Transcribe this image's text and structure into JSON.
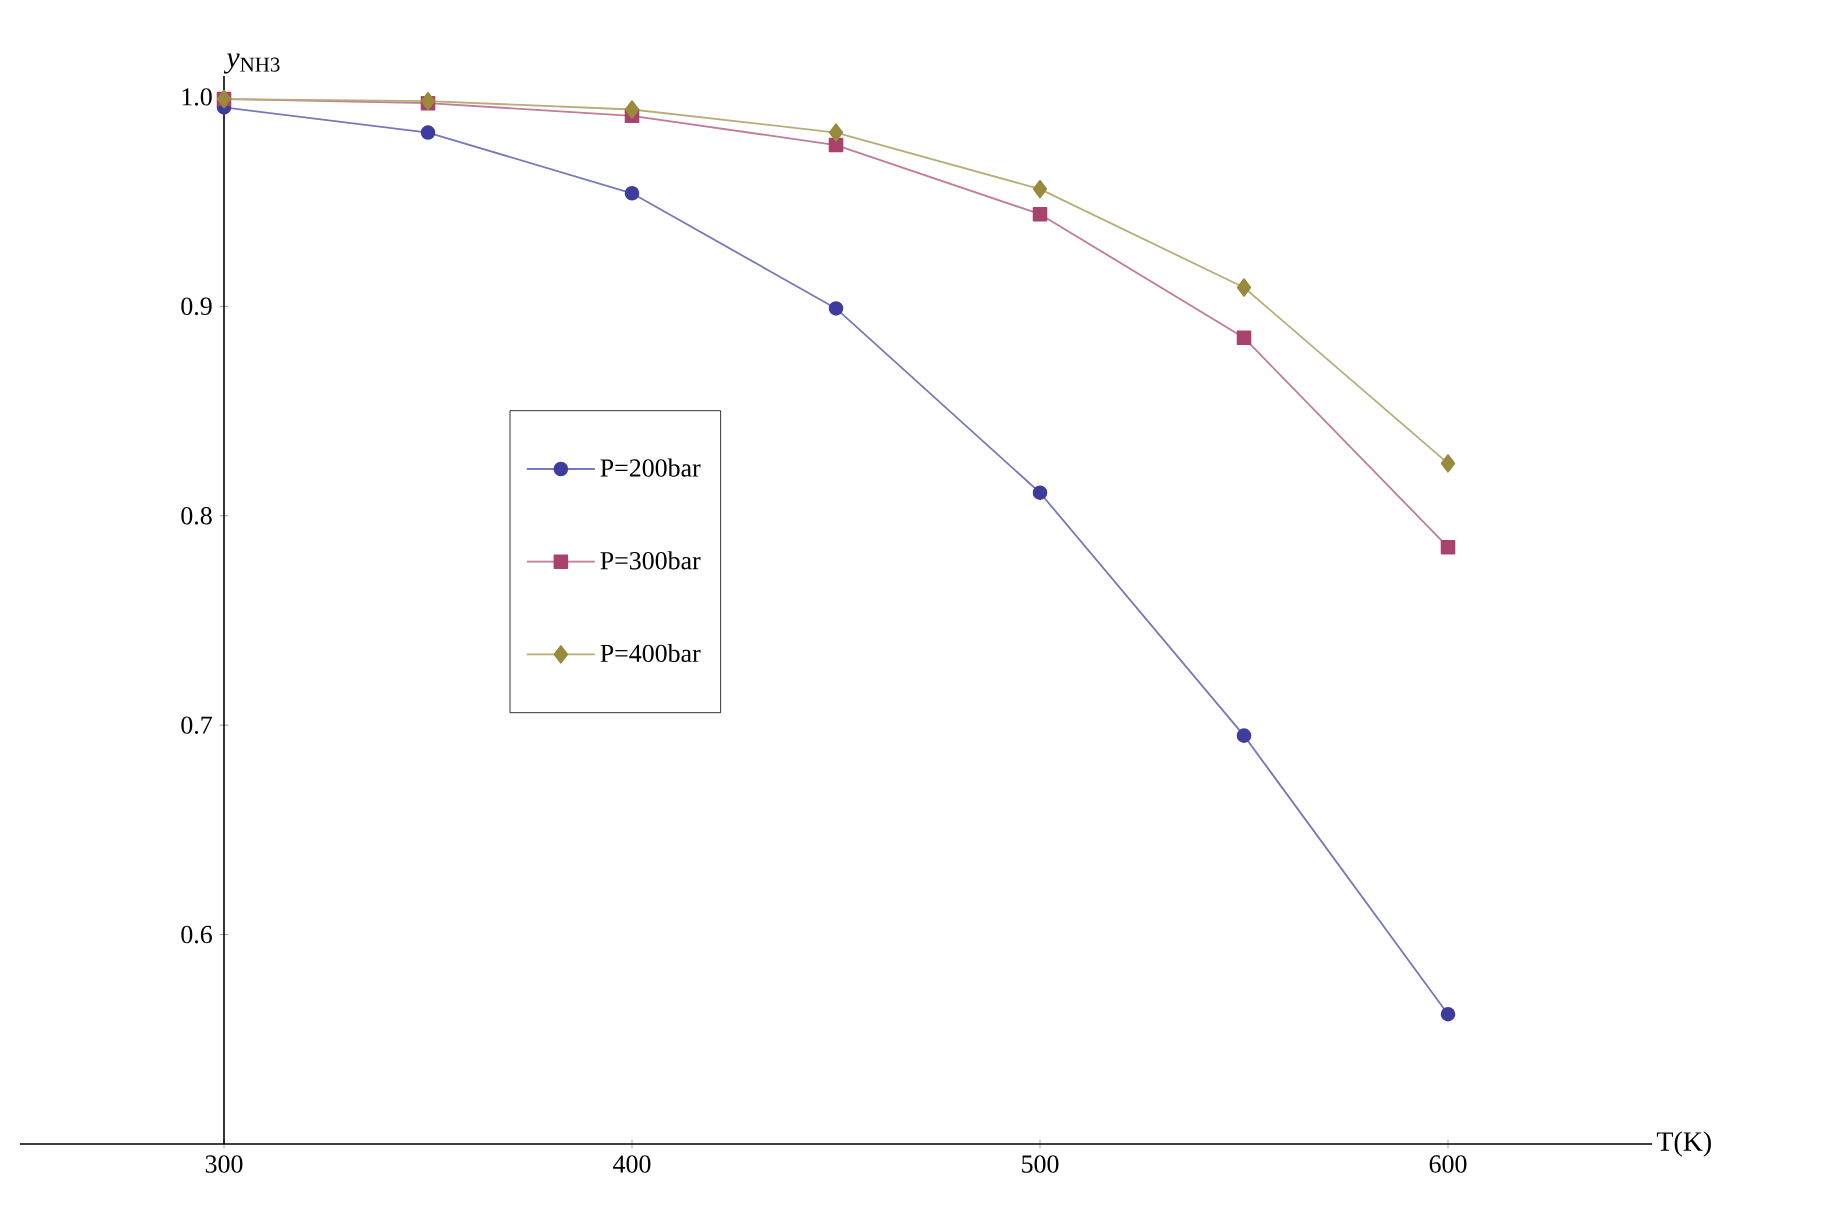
{
  "chart_data": {
    "type": "line",
    "xlabel": "T(K)",
    "ylabel": "*y*$_{NH3}$",
    "x": [
      300,
      350,
      400,
      450,
      500,
      550,
      600
    ],
    "series": [
      {
        "name": "P=200bar",
        "color": "#3d3d9e",
        "marker": "circle",
        "values": [
          0.995,
          0.983,
          0.954,
          0.899,
          0.811,
          0.695,
          0.562
        ]
      },
      {
        "name": "P=300bar",
        "color": "#a8426e",
        "marker": "square",
        "values": [
          0.999,
          0.997,
          0.991,
          0.977,
          0.944,
          0.885,
          0.785
        ]
      },
      {
        "name": "P=400bar",
        "color": "#9a8a3c",
        "marker": "diamond",
        "values": [
          0.999,
          0.998,
          0.994,
          0.983,
          0.956,
          0.909,
          0.825
        ]
      }
    ],
    "xlim": [
      250,
      650
    ],
    "ylim": [
      0.5,
      1.01
    ],
    "xticks": [
      300,
      400,
      500,
      600
    ],
    "yticks": [
      0.6,
      0.7,
      0.8,
      0.9,
      {
        "value": 1,
        "label": "1.0"
      }
    ],
    "legend": "left",
    "grid": false,
    "line_style": "solid"
  }
}
